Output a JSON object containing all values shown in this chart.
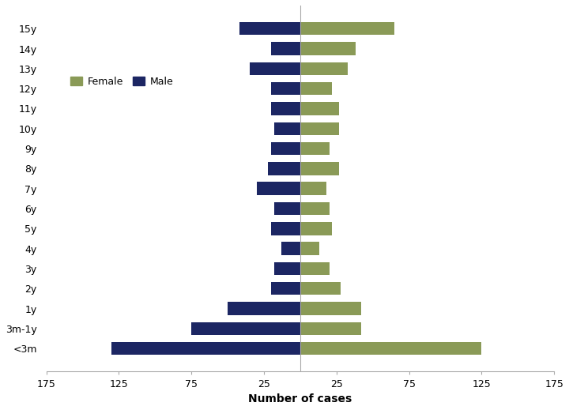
{
  "age_groups": [
    "<3m",
    "3m-1y",
    "1y",
    "2y",
    "3y",
    "4y",
    "5y",
    "6y",
    "7y",
    "8y",
    "9y",
    "10y",
    "11y",
    "12y",
    "13y",
    "14y",
    "15y"
  ],
  "male": [
    130,
    75,
    50,
    20,
    18,
    13,
    20,
    18,
    30,
    22,
    20,
    18,
    20,
    20,
    35,
    20,
    42
  ],
  "female": [
    125,
    42,
    42,
    28,
    20,
    13,
    22,
    20,
    18,
    27,
    20,
    27,
    27,
    22,
    33,
    38,
    65
  ],
  "male_color": "#1c2663",
  "female_color": "#8a9a57",
  "xlabel": "Number of cases",
  "xlim": 175,
  "background_color": "#ffffff",
  "legend_female_label": "Female",
  "legend_male_label": "Male"
}
